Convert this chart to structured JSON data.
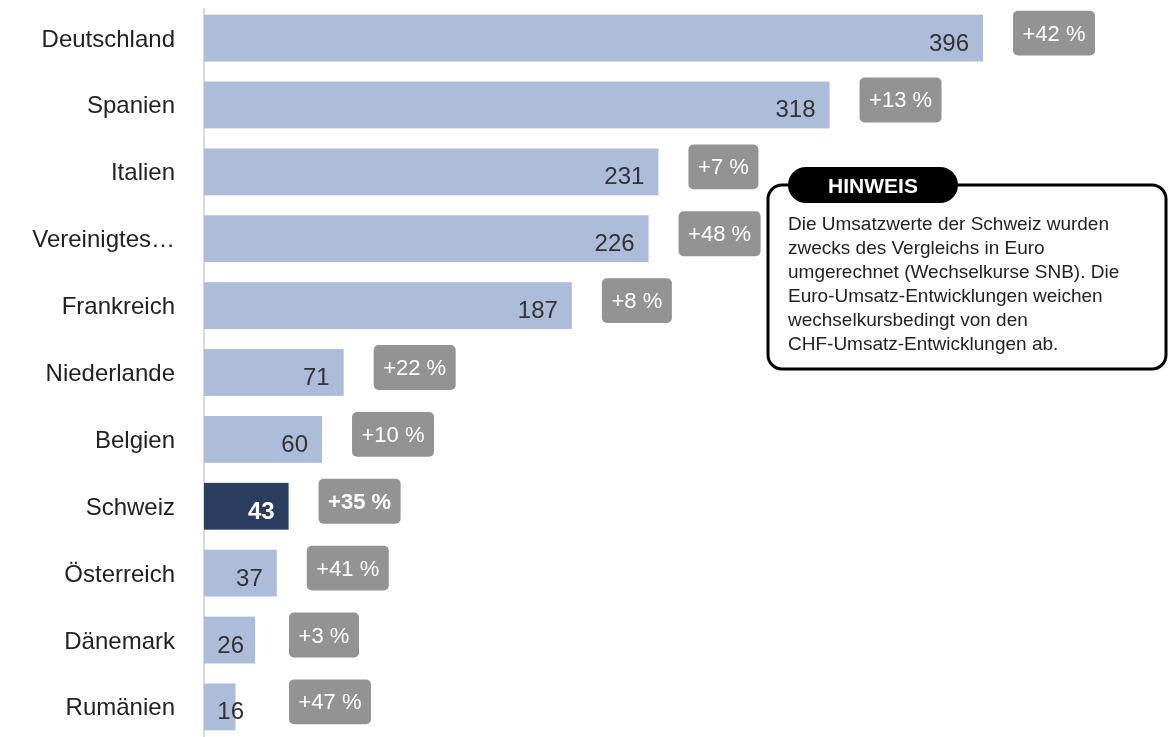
{
  "chart_data": {
    "type": "bar",
    "orientation": "horizontal",
    "categories": [
      "Deutschland",
      "Spanien",
      "Italien",
      "Vereinigtes…",
      "Frankreich",
      "Niederlande",
      "Belgien",
      "Schweiz",
      "Österreich",
      "Dänemark",
      "Rumänien"
    ],
    "values": [
      396,
      318,
      231,
      226,
      187,
      71,
      60,
      43,
      37,
      26,
      16
    ],
    "colors": [
      "#adbcd9",
      "#adbcd9",
      "#adbcd9",
      "#adbcd9",
      "#adbcd9",
      "#adbcd9",
      "#adbcd9",
      "#2b3d5e",
      "#adbcd9",
      "#adbcd9",
      "#adbcd9"
    ],
    "data_labels": true,
    "annotations": [
      "+42 %",
      "+13 %",
      "+7 %",
      "+48 %",
      "+8 %",
      "+22 %",
      "+10 %",
      "+35 %",
      "+41 %",
      "+3 %",
      "+47 %",
      "HINWEIS",
      "Die Umsatzwerte der Schweiz wurden zwecks des Vergleichs in Euro umgerechnet (Wechselkurse SNB). Die Euro-Umsatz-Entwicklungen weichen wechselkursbedingt von den CHF-Umsatz-Entwicklungen ab."
    ]
  }
}
